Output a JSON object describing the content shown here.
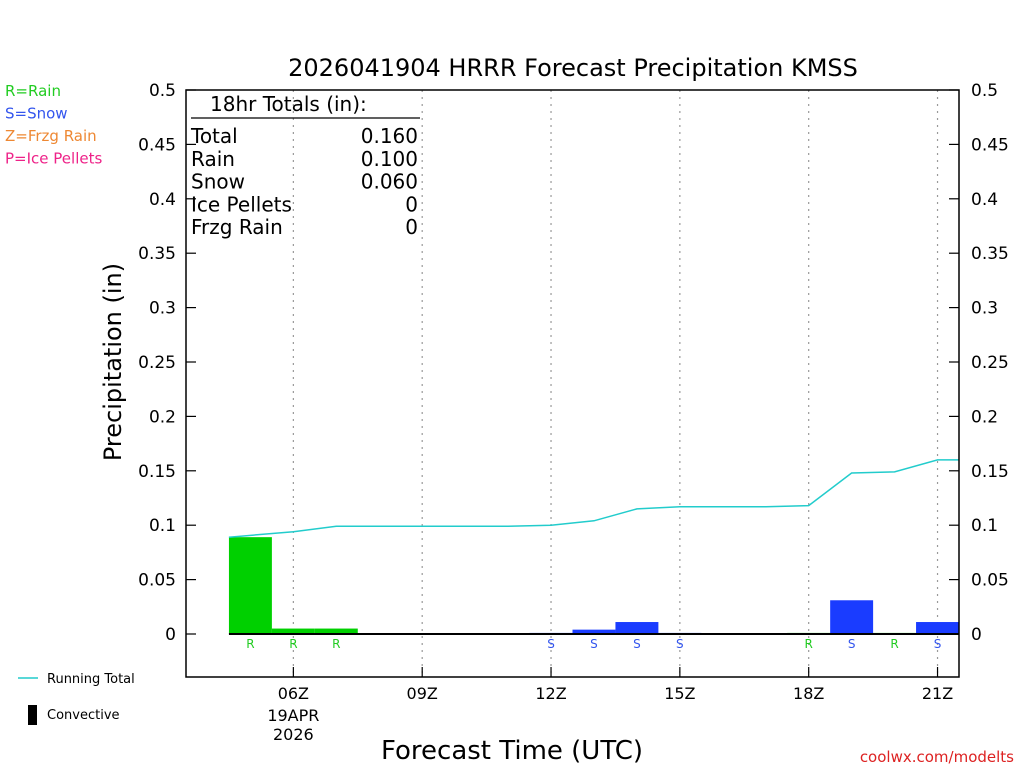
{
  "chart_data": {
    "type": "bar",
    "title": "2026041904 HRRR Forecast Precipitation KMSS",
    "xlabel": "Forecast Time (UTC)",
    "ylabel": "Precipitation (in)",
    "ylim": [
      0,
      0.5
    ],
    "y_ticks": [
      "0",
      "0.05",
      "0.1",
      "0.15",
      "0.2",
      "0.25",
      "0.3",
      "0.35",
      "0.4",
      "0.45",
      "0.5"
    ],
    "y_tick_values": [
      0,
      0.05,
      0.1,
      0.15,
      0.2,
      0.25,
      0.3,
      0.35,
      0.4,
      0.45,
      0.5
    ],
    "x_range_hours": [
      3.5,
      21.5
    ],
    "x_ticks": [
      {
        "hour": 6,
        "label": "06Z",
        "sub": [
          "19APR",
          "2026"
        ]
      },
      {
        "hour": 9,
        "label": "09Z",
        "sub": []
      },
      {
        "hour": 12,
        "label": "12Z",
        "sub": []
      },
      {
        "hour": 15,
        "label": "15Z",
        "sub": []
      },
      {
        "hour": 18,
        "label": "18Z",
        "sub": []
      },
      {
        "hour": 21,
        "label": "21Z",
        "sub": []
      }
    ],
    "grid": "vertical dotted at ticks",
    "bars": [
      {
        "hour": 5,
        "value": 0.089,
        "type": "R"
      },
      {
        "hour": 6,
        "value": 0.005,
        "type": "R"
      },
      {
        "hour": 7,
        "value": 0.005,
        "type": "R"
      },
      {
        "hour": 8,
        "value": 0,
        "type": ""
      },
      {
        "hour": 9,
        "value": 0,
        "type": ""
      },
      {
        "hour": 10,
        "value": 0,
        "type": ""
      },
      {
        "hour": 11,
        "value": 0,
        "type": ""
      },
      {
        "hour": 12,
        "value": 0.001,
        "type": "S"
      },
      {
        "hour": 13,
        "value": 0.004,
        "type": "S"
      },
      {
        "hour": 14,
        "value": 0.011,
        "type": "S"
      },
      {
        "hour": 15,
        "value": 0.001,
        "type": "S"
      },
      {
        "hour": 16,
        "value": 0,
        "type": ""
      },
      {
        "hour": 17,
        "value": 0,
        "type": ""
      },
      {
        "hour": 18,
        "value": 0.001,
        "type": "R"
      },
      {
        "hour": 19,
        "value": 0.031,
        "type": "S"
      },
      {
        "hour": 20,
        "value": 0.001,
        "type": "R"
      },
      {
        "hour": 21,
        "value": 0.011,
        "type": "S"
      }
    ],
    "running_total": {
      "name": "Running Total",
      "hours": [
        4.5,
        6,
        7,
        8,
        9,
        10,
        11,
        12,
        13,
        14,
        15,
        16,
        17,
        18,
        19,
        20,
        21,
        21.5
      ],
      "values": [
        0.089,
        0.094,
        0.099,
        0.099,
        0.099,
        0.099,
        0.099,
        0.1,
        0.104,
        0.115,
        0.117,
        0.117,
        0.117,
        0.118,
        0.148,
        0.149,
        0.16,
        0.16
      ]
    },
    "totals_box": {
      "heading": "18hr Totals (in):",
      "rows": [
        {
          "label": "Total",
          "value": "0.160"
        },
        {
          "label": "Rain",
          "value": "0.100"
        },
        {
          "label": "Snow",
          "value": "0.060"
        },
        {
          "label": "Ice Pellets",
          "value": "0"
        },
        {
          "label": "Frzg Rain",
          "value": "0"
        }
      ]
    },
    "precip_legend": [
      {
        "text": "R=Rain",
        "color": "#22cc22"
      },
      {
        "text": "S=Snow",
        "color": "#3355ee"
      },
      {
        "text": "Z=Frzg Rain",
        "color": "#ee8833"
      },
      {
        "text": "P=Ice Pellets",
        "color": "#ee2288"
      }
    ],
    "line_legend": [
      {
        "text": "Running Total",
        "color": "#22cccc",
        "kind": "line"
      },
      {
        "text": "Convective",
        "color": "#000000",
        "kind": "bar"
      }
    ],
    "colors": {
      "rain_bar": "#00d000",
      "snow_bar": "#1a3cff",
      "rain_letter": "#22cc22",
      "snow_letter": "#3355ee",
      "running_total": "#22cccc",
      "credit": "#dd2222"
    },
    "credit": "coolwx.com/modelts"
  }
}
